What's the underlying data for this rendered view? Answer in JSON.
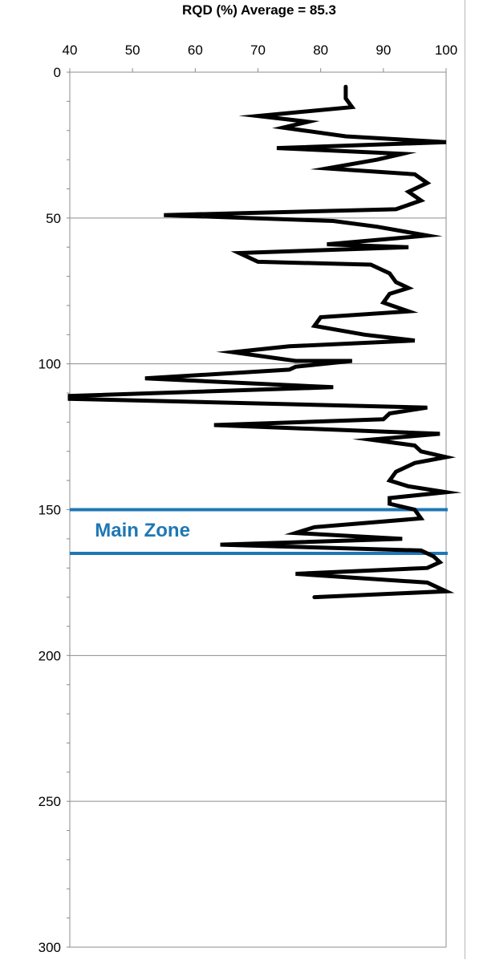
{
  "chart_data": {
    "type": "line",
    "title": "RQD (%) Average = 85.3",
    "xlabel": "",
    "ylabel": "",
    "xlim": [
      40,
      100
    ],
    "ylim": [
      300,
      0
    ],
    "x_ticks": [
      "40",
      "50",
      "60",
      "70",
      "80",
      "90",
      "100"
    ],
    "y_ticks": [
      "0",
      "50",
      "100",
      "150",
      "200",
      "250",
      "300"
    ],
    "y_reversed": true,
    "grid": "horizontal",
    "series": [
      {
        "color": "#000000",
        "points": [
          [
            84,
            5
          ],
          [
            84,
            9
          ],
          [
            85,
            12
          ],
          [
            70,
            15
          ],
          [
            78,
            17
          ],
          [
            74,
            19
          ],
          [
            84,
            22
          ],
          [
            100,
            24
          ],
          [
            73,
            26
          ],
          [
            93,
            28
          ],
          [
            89,
            30
          ],
          [
            81,
            33
          ],
          [
            95,
            35
          ],
          [
            97,
            38
          ],
          [
            94,
            41
          ],
          [
            96,
            44
          ],
          [
            92,
            47
          ],
          [
            55,
            49
          ],
          [
            82,
            51
          ],
          [
            89,
            53
          ],
          [
            97,
            56
          ],
          [
            81,
            59
          ],
          [
            94,
            60
          ],
          [
            67,
            62
          ],
          [
            70,
            65
          ],
          [
            88,
            66
          ],
          [
            91,
            69
          ],
          [
            92,
            72
          ],
          [
            94,
            74
          ],
          [
            91,
            76
          ],
          [
            90,
            79
          ],
          [
            94,
            82
          ],
          [
            80,
            84
          ],
          [
            79,
            87
          ],
          [
            87,
            90
          ],
          [
            95,
            92
          ],
          [
            75,
            94
          ],
          [
            66,
            96
          ],
          [
            76,
            99
          ],
          [
            85,
            99
          ],
          [
            76,
            101
          ],
          [
            75,
            102
          ],
          [
            52,
            105
          ],
          [
            82,
            108
          ],
          [
            40,
            111
          ],
          [
            40,
            112
          ],
          [
            97,
            115
          ],
          [
            91,
            117
          ],
          [
            90,
            119
          ],
          [
            63,
            121
          ],
          [
            99,
            124
          ],
          [
            88,
            126
          ],
          [
            95,
            128
          ],
          [
            96,
            130
          ],
          [
            100,
            132
          ],
          [
            95,
            134
          ],
          [
            92,
            137
          ],
          [
            91,
            140
          ],
          [
            94,
            142
          ],
          [
            100,
            144
          ],
          [
            91,
            146
          ],
          [
            91,
            148
          ],
          [
            95,
            150
          ],
          [
            96,
            153
          ],
          [
            79,
            156
          ],
          [
            76,
            158
          ],
          [
            93,
            160
          ],
          [
            64,
            162
          ],
          [
            96,
            164
          ],
          [
            98,
            166
          ],
          [
            99,
            168
          ],
          [
            97,
            170
          ],
          [
            76,
            172
          ],
          [
            97,
            175
          ],
          [
            100,
            178
          ],
          [
            79,
            180
          ]
        ]
      }
    ],
    "annotations": [
      {
        "text": "Main Zone",
        "x": 44,
        "y": 157,
        "color": "#1f77b4"
      }
    ],
    "zone_lines": [
      {
        "y": 150,
        "color": "#1f77b4"
      },
      {
        "y": 165,
        "color": "#1f77b4"
      }
    ]
  }
}
